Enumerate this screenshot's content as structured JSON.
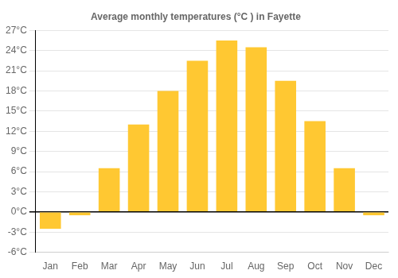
{
  "chart_data": {
    "type": "bar",
    "title": "Average monthly temperatures (°C ) in Fayette",
    "categories": [
      "Jan",
      "Feb",
      "Mar",
      "Apr",
      "May",
      "Jun",
      "Jul",
      "Aug",
      "Sep",
      "Oct",
      "Nov",
      "Dec"
    ],
    "values": [
      -2.5,
      -0.5,
      6.5,
      13.0,
      18.0,
      22.5,
      25.5,
      24.5,
      19.5,
      13.5,
      6.5,
      -0.5
    ],
    "color": "#FFC832",
    "ylim": [
      -6,
      27
    ],
    "yticks": [
      {
        "value": -6,
        "label": "-6°C"
      },
      {
        "value": -3,
        "label": "-3°C"
      },
      {
        "value": 0,
        "label": "0°C"
      },
      {
        "value": 3,
        "label": "3°C"
      },
      {
        "value": 6,
        "label": "6°C"
      },
      {
        "value": 9,
        "label": "9°C"
      },
      {
        "value": 12,
        "label": "12°C"
      },
      {
        "value": 15,
        "label": "15°C"
      },
      {
        "value": 18,
        "label": "18°C"
      },
      {
        "value": 21,
        "label": "21°C"
      },
      {
        "value": 24,
        "label": "24°C"
      },
      {
        "value": 27,
        "label": "27°C"
      }
    ],
    "grid": true
  }
}
